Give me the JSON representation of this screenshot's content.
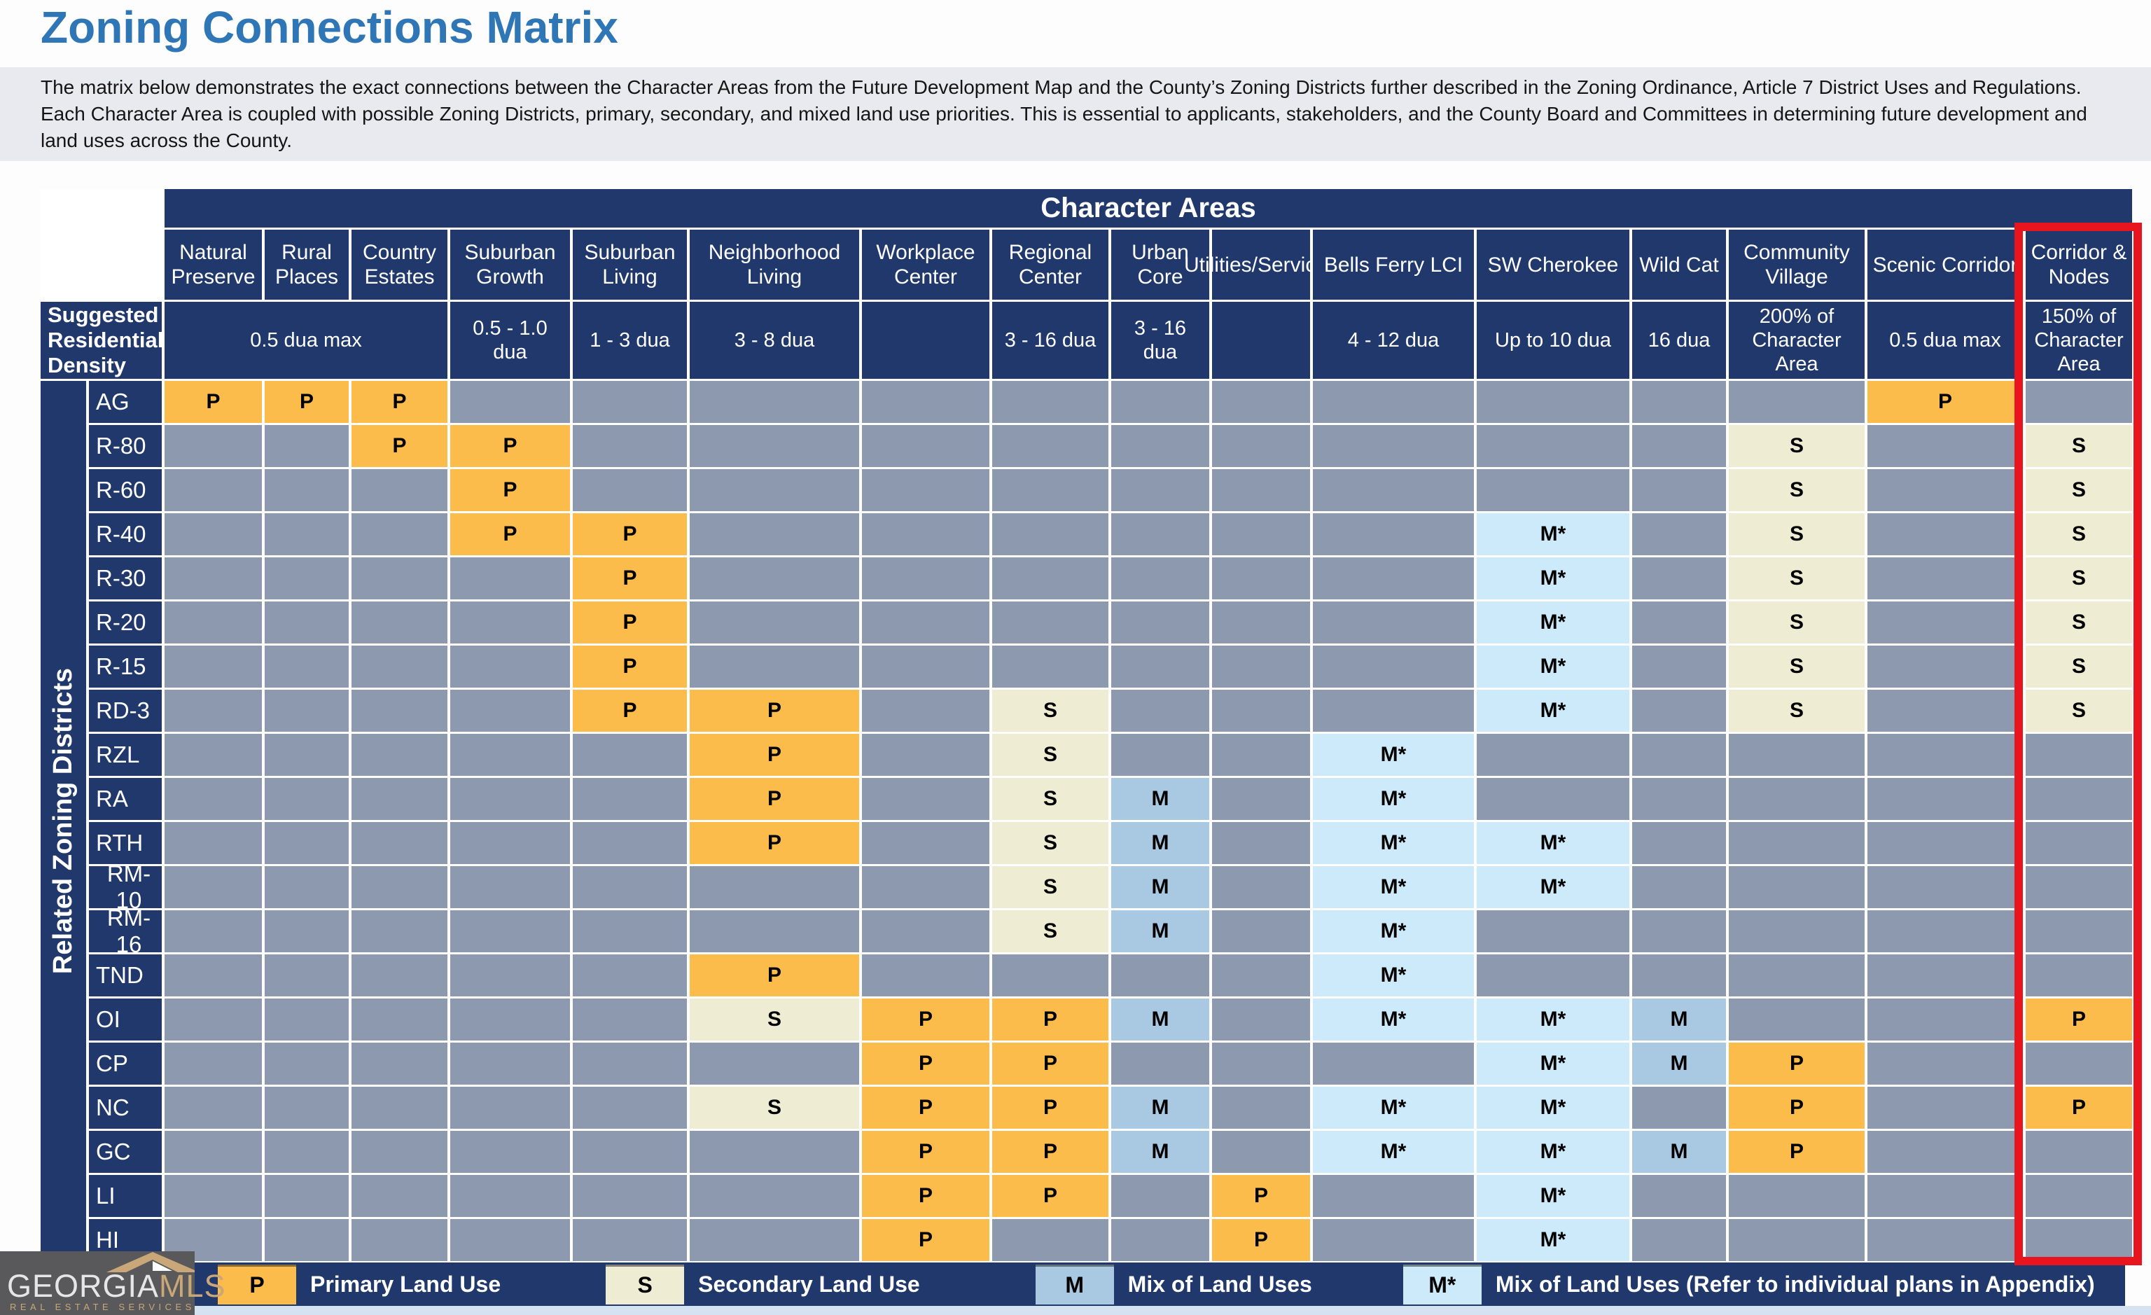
{
  "page": {
    "title": "Zoning Connections Matrix",
    "intro": "The matrix below demonstrates the exact connections between the Character Areas from the Future Development Map and the County’s Zoning Districts further described in the Zoning Ordinance, Article 7 District Uses and Regulations. Each Character Area is coupled with possible Zoning Districts, primary, secondary, and mixed land use priorities. This is essential to applicants, stakeholders, and the County Board and Committees in determining future development and land uses across the County."
  },
  "matrix": {
    "banner": "Character Areas",
    "density_label": "Suggested Residential Density",
    "side_label": "Related Zoning Districts",
    "columns": [
      "Natural Preserve",
      "Rural Places",
      "Country Estates",
      "Suburban Growth",
      "Suburban Living",
      "Neighborhood Living",
      "Workplace Center",
      "Regional Center",
      "Urban Core",
      "Utilities/Services",
      "Bells Ferry LCI",
      "SW Cherokee",
      "Wild Cat",
      "Community Village",
      "Scenic Corridor",
      "Corridor & Nodes"
    ],
    "densities": [
      {
        "text": "0.5 dua max",
        "span": 3
      },
      {
        "text": "0.5 - 1.0 dua",
        "span": 1
      },
      {
        "text": "1 - 3 dua",
        "span": 1
      },
      {
        "text": "3 - 8 dua",
        "span": 1
      },
      {
        "text": "",
        "span": 1
      },
      {
        "text": "3 - 16 dua",
        "span": 1
      },
      {
        "text": "3 - 16 dua",
        "span": 1
      },
      {
        "text": "",
        "span": 1
      },
      {
        "text": "4 - 12 dua",
        "span": 1
      },
      {
        "text": "Up to 10 dua",
        "span": 1
      },
      {
        "text": "16 dua",
        "span": 1
      },
      {
        "text": "200% of Character Area",
        "span": 1
      },
      {
        "text": "0.5 dua max",
        "span": 1
      },
      {
        "text": "150% of Character Area",
        "span": 1
      }
    ],
    "rows": [
      {
        "district": "AG",
        "cells": [
          "P",
          "P",
          "P",
          "",
          "",
          "",
          "",
          "",
          "",
          "",
          "",
          "",
          "",
          "",
          "P",
          ""
        ]
      },
      {
        "district": "R-80",
        "cells": [
          "",
          "",
          "P",
          "P",
          "",
          "",
          "",
          "",
          "",
          "",
          "",
          "",
          "",
          "S",
          "",
          "S"
        ]
      },
      {
        "district": "R-60",
        "cells": [
          "",
          "",
          "",
          "P",
          "",
          "",
          "",
          "",
          "",
          "",
          "",
          "",
          "",
          "S",
          "",
          "S"
        ]
      },
      {
        "district": "R-40",
        "cells": [
          "",
          "",
          "",
          "P",
          "P",
          "",
          "",
          "",
          "",
          "",
          "",
          "M*",
          "",
          "S",
          "",
          "S"
        ]
      },
      {
        "district": "R-30",
        "cells": [
          "",
          "",
          "",
          "",
          "P",
          "",
          "",
          "",
          "",
          "",
          "",
          "M*",
          "",
          "S",
          "",
          "S"
        ]
      },
      {
        "district": "R-20",
        "cells": [
          "",
          "",
          "",
          "",
          "P",
          "",
          "",
          "",
          "",
          "",
          "",
          "M*",
          "",
          "S",
          "",
          "S"
        ]
      },
      {
        "district": "R-15",
        "cells": [
          "",
          "",
          "",
          "",
          "P",
          "",
          "",
          "",
          "",
          "",
          "",
          "M*",
          "",
          "S",
          "",
          "S"
        ]
      },
      {
        "district": "RD-3",
        "cells": [
          "",
          "",
          "",
          "",
          "P",
          "P",
          "",
          "S",
          "",
          "",
          "",
          "M*",
          "",
          "S",
          "",
          "S"
        ]
      },
      {
        "district": "RZL",
        "cells": [
          "",
          "",
          "",
          "",
          "",
          "P",
          "",
          "S",
          "",
          "",
          "M*",
          "",
          "",
          "",
          "",
          ""
        ]
      },
      {
        "district": "RA",
        "cells": [
          "",
          "",
          "",
          "",
          "",
          "P",
          "",
          "S",
          "M",
          "",
          "M*",
          "",
          "",
          "",
          "",
          ""
        ]
      },
      {
        "district": "RTH",
        "cells": [
          "",
          "",
          "",
          "",
          "",
          "P",
          "",
          "S",
          "M",
          "",
          "M*",
          "M*",
          "",
          "",
          "",
          ""
        ]
      },
      {
        "district": "RM-10",
        "cells": [
          "",
          "",
          "",
          "",
          "",
          "",
          "",
          "S",
          "M",
          "",
          "M*",
          "M*",
          "",
          "",
          "",
          ""
        ]
      },
      {
        "district": "RM-16",
        "cells": [
          "",
          "",
          "",
          "",
          "",
          "",
          "",
          "S",
          "M",
          "",
          "M*",
          "",
          "",
          "",
          "",
          ""
        ]
      },
      {
        "district": "TND",
        "cells": [
          "",
          "",
          "",
          "",
          "",
          "P",
          "",
          "",
          "",
          "",
          "M*",
          "",
          "",
          "",
          "",
          ""
        ]
      },
      {
        "district": "OI",
        "cells": [
          "",
          "",
          "",
          "",
          "",
          "S",
          "P",
          "P",
          "M",
          "",
          "M*",
          "M*",
          "M",
          "",
          "",
          "P"
        ]
      },
      {
        "district": "CP",
        "cells": [
          "",
          "",
          "",
          "",
          "",
          "",
          "P",
          "P",
          "",
          "",
          "",
          "M*",
          "M",
          "P",
          "",
          ""
        ]
      },
      {
        "district": "NC",
        "cells": [
          "",
          "",
          "",
          "",
          "",
          "S",
          "P",
          "P",
          "M",
          "",
          "M*",
          "M*",
          "",
          "P",
          "",
          "P"
        ]
      },
      {
        "district": "GC",
        "cells": [
          "",
          "",
          "",
          "",
          "",
          "",
          "P",
          "P",
          "M",
          "",
          "M*",
          "M*",
          "M",
          "P",
          "",
          ""
        ]
      },
      {
        "district": "LI",
        "cells": [
          "",
          "",
          "",
          "",
          "",
          "",
          "P",
          "P",
          "",
          "P",
          "",
          "M*",
          "",
          "",
          "",
          ""
        ]
      },
      {
        "district": "HI",
        "cells": [
          "",
          "",
          "",
          "",
          "",
          "",
          "P",
          "",
          "",
          "P",
          "",
          "M*",
          "",
          "",
          "",
          ""
        ]
      }
    ],
    "highlighted_column": "Corridor & Nodes"
  },
  "legend": {
    "items": [
      {
        "symbol": "P",
        "label": "Primary Land Use",
        "color": "#FBBC4C"
      },
      {
        "symbol": "S",
        "label": "Secondary Land Use",
        "color": "#EFECD4"
      },
      {
        "symbol": "M",
        "label": "Mix of Land Uses",
        "color": "#A9C8E2"
      },
      {
        "symbol": "M*",
        "label": "Mix of Land Uses (Refer to individual plans in Appendix)",
        "color": "#CDEAFA"
      }
    ]
  },
  "logo": {
    "name1": "GEORGIA",
    "name2": "MLS",
    "tagline": "REAL ESTATE SERVICES"
  },
  "colors": {
    "navy": "#20386B",
    "cell_empty": "#8D99AE",
    "primary": "#FBBC4C",
    "secondary": "#EFECD4",
    "mix": "#A9C8E2",
    "mix_plans": "#CDEAFA",
    "highlight_red": "#E8151E",
    "title_blue": "#2E76B6",
    "legend_bar": "#20386B",
    "logo_bg": "#59595B",
    "logo_gold": "#C9A778"
  }
}
